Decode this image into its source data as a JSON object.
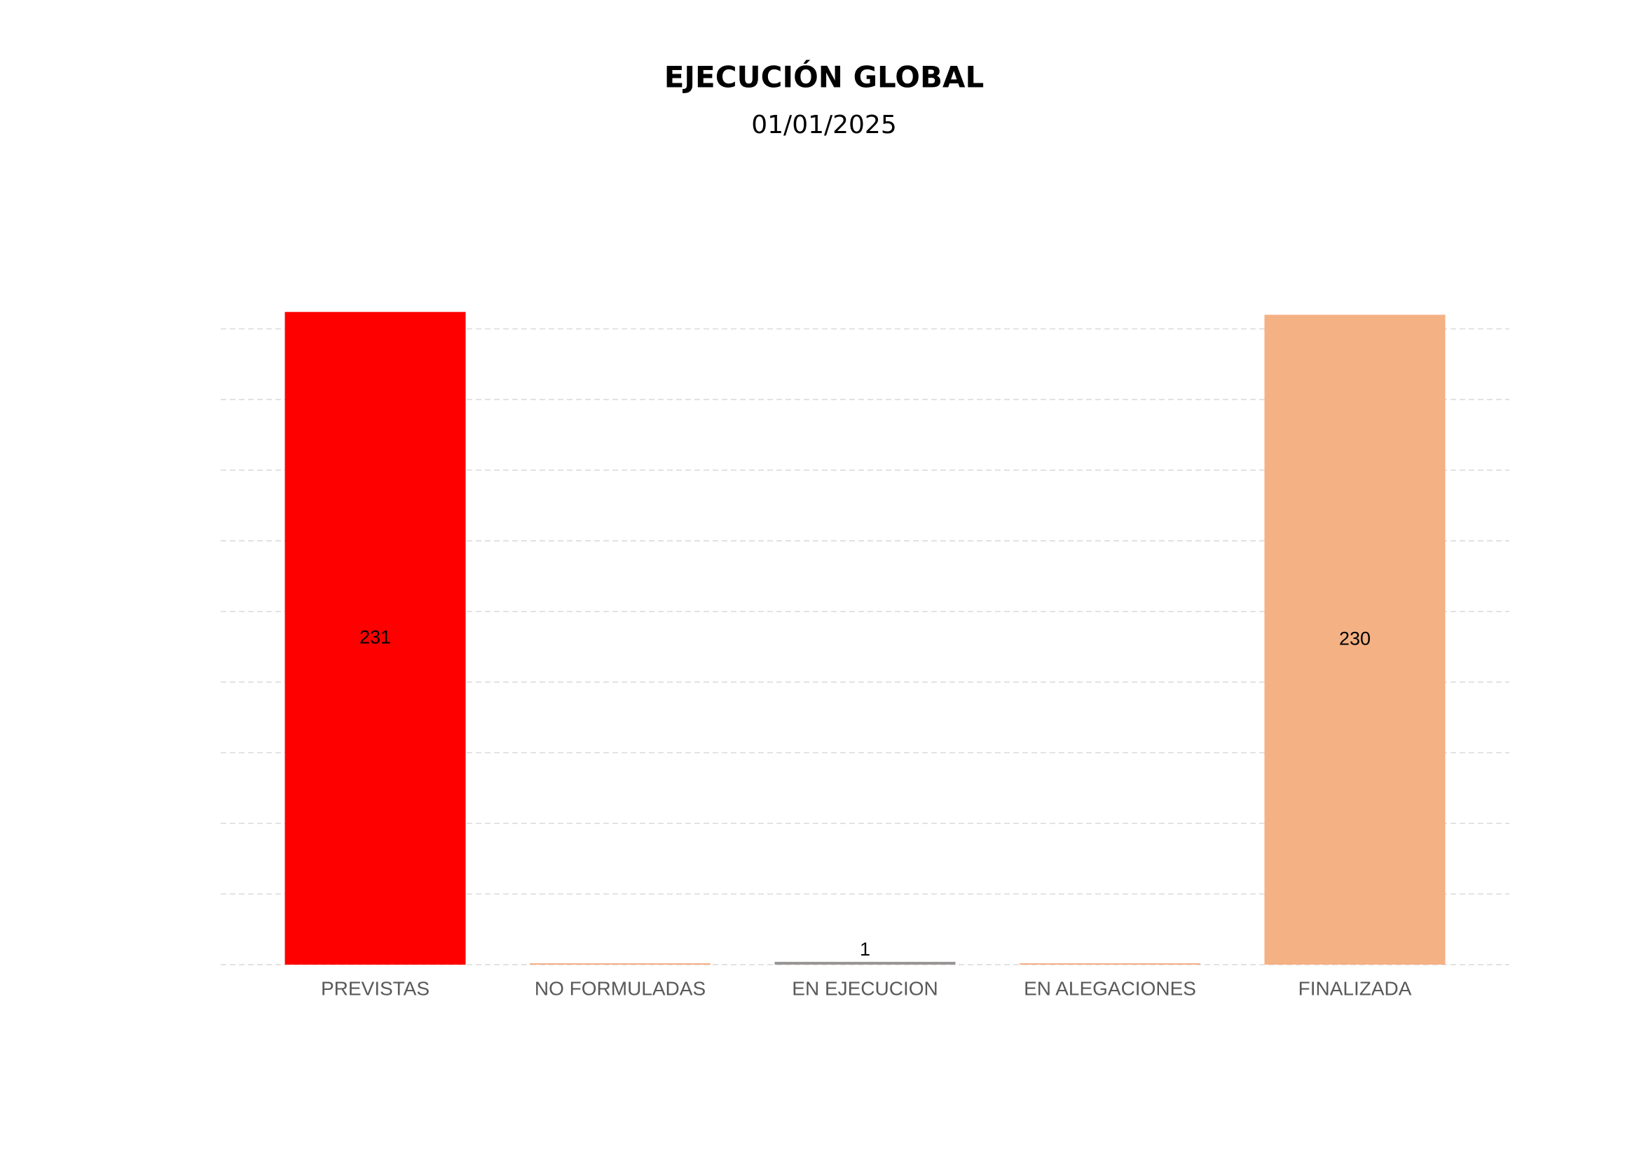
{
  "chart_data": {
    "type": "bar",
    "title": "EJECUCIÓN GLOBAL",
    "subtitle": "01/01/2025",
    "categories": [
      "PREVISTAS",
      "NO FORMULADAS",
      "EN EJECUCION",
      "EN ALEGACIONES",
      "FINALIZADA"
    ],
    "values": [
      231,
      0,
      1,
      0,
      230
    ],
    "value_labels": [
      "231",
      null,
      "1",
      null,
      "230"
    ],
    "colors": [
      "#ff0000",
      "#f4b183",
      "#9a9696",
      "#f4b183",
      "#f4b183"
    ],
    "ylim": [
      0,
      240
    ],
    "yticks": [
      0,
      25,
      50,
      75,
      100,
      125,
      150,
      175,
      200,
      225
    ],
    "grid": true
  }
}
